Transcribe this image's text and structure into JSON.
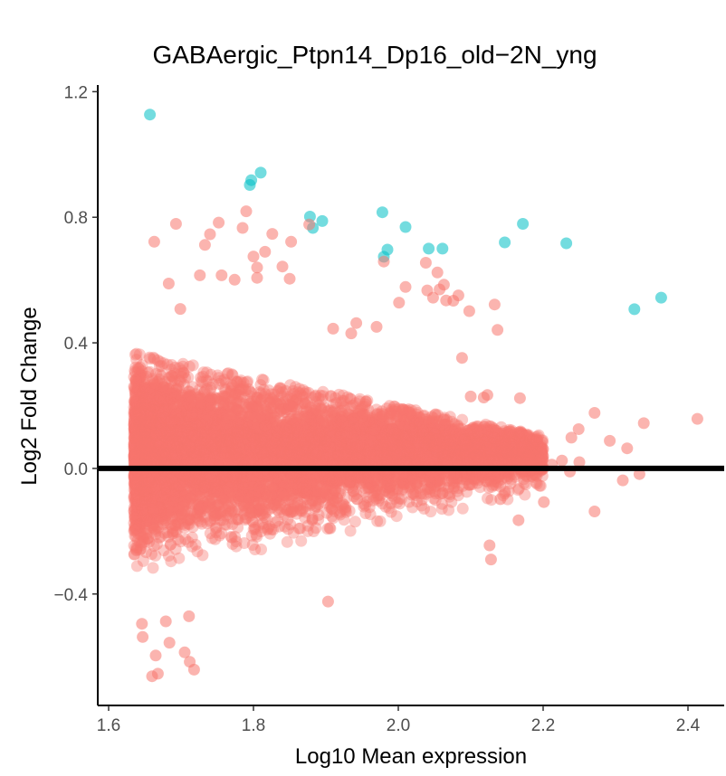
{
  "chart_data": {
    "type": "scatter",
    "title": "GABAergic_Ptpn14_Dp16_old−2N_yng",
    "xlabel": "Log10 Mean expression",
    "ylabel": "Log2 Fold Change",
    "xlim": [
      1.585,
      2.45
    ],
    "ylim": [
      -0.755,
      1.25
    ],
    "xticks": [
      1.6,
      1.8,
      2.0,
      2.2,
      2.4
    ],
    "yticks": [
      -0.4,
      0.0,
      0.4,
      0.8,
      1.2
    ],
    "xtick_labels": [
      "1.6",
      "1.8",
      "2.0",
      "2.2",
      "2.4"
    ],
    "ytick_labels": [
      "−0.4",
      "0.0",
      "0.4",
      "0.8",
      "1.2"
    ],
    "hline_y": 0.0,
    "grid": false,
    "legend": "none",
    "colors": {
      "not_significant": "#F8766D",
      "significant": "#00BFC4",
      "hline": "#000000"
    },
    "series": [
      {
        "color": "#00BFC4",
        "x": [
          1.657,
          1.81,
          1.797,
          1.795,
          1.878,
          1.895,
          1.882,
          1.978,
          2.01,
          1.985,
          1.98,
          2.042,
          2.061,
          2.147,
          2.172,
          2.232,
          2.326,
          2.363
        ],
        "y": [
          1.127,
          0.942,
          0.918,
          0.903,
          0.802,
          0.788,
          0.766,
          0.816,
          0.769,
          0.697,
          0.674,
          0.7,
          0.7,
          0.72,
          0.779,
          0.717,
          0.507,
          0.544
        ]
      },
      {
        "color": "#F8766D",
        "x": [
          2.413,
          2.339,
          2.333,
          2.31,
          2.316,
          2.292,
          2.271,
          2.271,
          2.249,
          2.25,
          2.237,
          2.239,
          2.226,
          2.212,
          2.201,
          2.126,
          2.128,
          2.141,
          2.166,
          2.137,
          2.098,
          2.076,
          2.054,
          2.083,
          2.088,
          2.133,
          2.123,
          2.1,
          2.168,
          2.118,
          2.04,
          1.903,
          1.712,
          1.718,
          1.705,
          1.668,
          1.66,
          1.647,
          1.646,
          1.665,
          1.684,
          1.679,
          1.711,
          1.663,
          1.79,
          1.785,
          1.752,
          1.74,
          1.733,
          1.8,
          1.826,
          1.852,
          1.805,
          1.816,
          1.877,
          1.98,
          2.01,
          2.038,
          2.057,
          2.063,
          2.048,
          2.001,
          2.066,
          1.756,
          1.774,
          1.805,
          1.84,
          1.85,
          1.942,
          1.97,
          1.935,
          1.91,
          1.693,
          1.726,
          1.683,
          1.699
        ],
        "y": [
          0.158,
          0.144,
          -0.018,
          -0.038,
          0.064,
          0.088,
          0.177,
          -0.137,
          0.125,
          0.02,
          -0.01,
          0.098,
          0.025,
          0.012,
          -0.107,
          -0.245,
          -0.29,
          -0.098,
          -0.165,
          0.441,
          0.501,
          0.534,
          0.624,
          0.551,
          0.352,
          0.522,
          0.234,
          0.229,
          0.224,
          0.226,
          0.567,
          -0.424,
          -0.616,
          -0.641,
          -0.586,
          -0.654,
          -0.662,
          -0.537,
          -0.495,
          -0.596,
          -0.555,
          -0.487,
          -0.471,
          0.722,
          0.819,
          0.766,
          0.783,
          0.746,
          0.712,
          0.675,
          0.747,
          0.722,
          0.64,
          0.69,
          0.777,
          0.659,
          0.578,
          0.655,
          0.57,
          0.585,
          0.544,
          0.528,
          0.535,
          0.615,
          0.601,
          0.607,
          0.643,
          0.604,
          0.463,
          0.451,
          0.43,
          0.445,
          0.779,
          0.615,
          0.589,
          0.508
        ]
      }
    ],
    "dense_cloud": {
      "color": "#F8766D",
      "x_range": [
        1.635,
        2.2
      ],
      "y_center": 0.05,
      "y_spread_near_start": 0.35,
      "y_spread_near_end": 0.1
    }
  }
}
